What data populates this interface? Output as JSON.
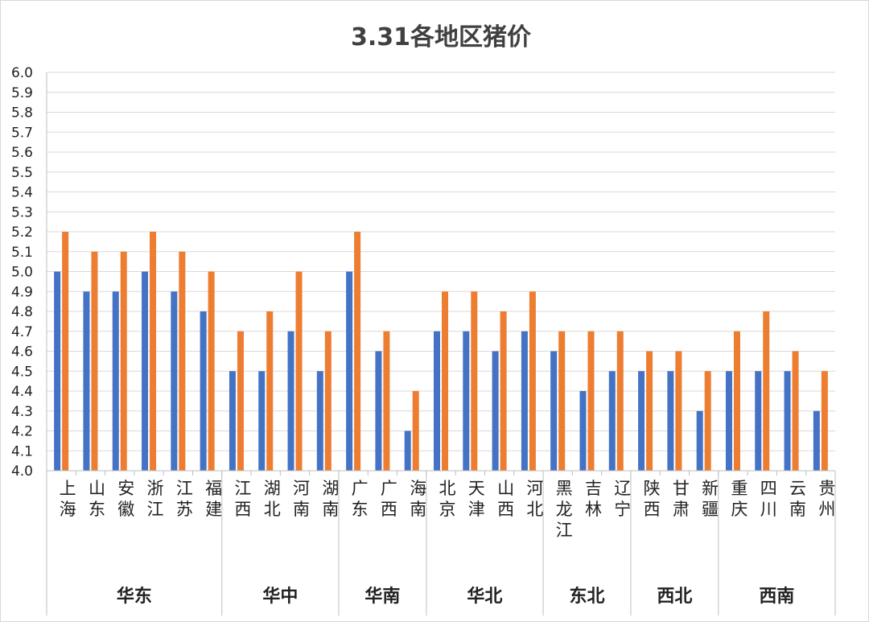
{
  "chart_data": {
    "type": "bar",
    "title": "3.31各地区猪价",
    "ylim": [
      4.0,
      6.0
    ],
    "ytick_step": 0.1,
    "grid": true,
    "legend": "none",
    "colors": {
      "series1": "#4472C4",
      "series2": "#ED7D31"
    },
    "groups": [
      {
        "name": "华东",
        "size": 6
      },
      {
        "name": "华中",
        "size": 4
      },
      {
        "name": "华南",
        "size": 3
      },
      {
        "name": "华北",
        "size": 4
      },
      {
        "name": "东北",
        "size": 3
      },
      {
        "name": "西北",
        "size": 3
      },
      {
        "name": "西南",
        "size": 4
      }
    ],
    "categories": [
      "上海",
      "山东",
      "安徽",
      "浙江",
      "江苏",
      "福建",
      "江西",
      "湖北",
      "河南",
      "湖南",
      "广东",
      "广西",
      "海南",
      "北京",
      "天津",
      "山西",
      "河北",
      "黑龙江",
      "吉林",
      "辽宁",
      "陕西",
      "甘肃",
      "新疆",
      "重庆",
      "四川",
      "云南",
      "贵州"
    ],
    "series": [
      {
        "values": [
          5.0,
          4.9,
          4.9,
          5.0,
          4.9,
          4.8,
          4.5,
          4.5,
          4.7,
          4.5,
          5.0,
          4.6,
          4.2,
          4.7,
          4.7,
          4.6,
          4.7,
          4.6,
          4.4,
          4.5,
          4.5,
          4.5,
          4.3,
          4.5,
          4.5,
          4.5,
          4.3
        ]
      },
      {
        "values": [
          5.2,
          5.1,
          5.1,
          5.2,
          5.1,
          5.0,
          4.7,
          4.8,
          5.0,
          4.7,
          5.2,
          4.7,
          4.4,
          4.9,
          4.9,
          4.8,
          4.9,
          4.7,
          4.7,
          4.7,
          4.6,
          4.6,
          4.5,
          4.7,
          4.8,
          4.6,
          4.5
        ]
      }
    ]
  }
}
